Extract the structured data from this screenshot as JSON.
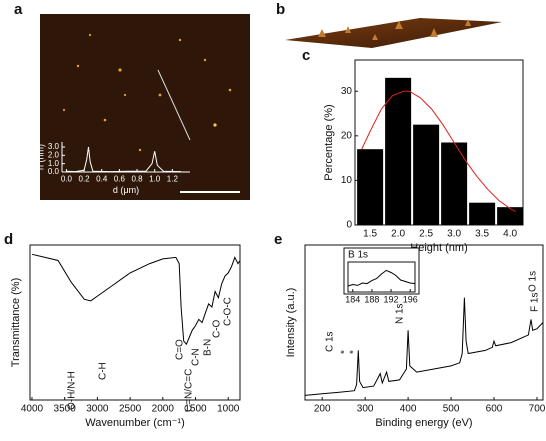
{
  "panel_labels": [
    "a",
    "b",
    "c",
    "d",
    "e"
  ],
  "chart_data": [
    {
      "type": "line",
      "xlabel": "d (μm)",
      "ylabel": "h (nm)",
      "xlim": [
        -0.05,
        1.4
      ],
      "ylim": [
        0,
        3.6
      ],
      "xticks": [
        {
          "value": 0,
          "label": "0.0"
        },
        0.2,
        0.4,
        0.6,
        0.8,
        {
          "value": 1,
          "label": "1.0"
        },
        1.2
      ],
      "yticks": [
        {
          "value": 0,
          "label": "0.0"
        },
        {
          "value": 1,
          "label": "1.0"
        },
        {
          "value": 2,
          "label": "2.0"
        },
        {
          "value": 3,
          "label": "3.0"
        }
      ],
      "series": [
        {
          "color": "#ffffff",
          "x": [
            0,
            0.1,
            0.2,
            0.23,
            0.25,
            0.27,
            0.3,
            0.5,
            0.7,
            0.9,
            0.97,
            1.0,
            1.03,
            1.1,
            1.3
          ],
          "values": [
            0.1,
            0.05,
            0.2,
            1.5,
            3.0,
            1.2,
            0.1,
            0.05,
            0.1,
            0.1,
            1.0,
            2.5,
            0.8,
            0.1,
            0.05
          ]
        }
      ]
    },
    {
      "type": "histogram",
      "xlabel": "Height (nm)",
      "ylabel": "Percentage (%)",
      "bins": [
        1.25,
        1.75,
        2.25,
        2.75,
        3.25,
        3.75,
        4.25
      ],
      "values": [
        17,
        33,
        22.5,
        18.5,
        5,
        4
      ],
      "color": "#000000",
      "xlim": [
        1.23,
        4.23
      ],
      "ylim": [
        0,
        37
      ],
      "xticks": [
        1.5,
        {
          "value": 2,
          "label": "2.0"
        },
        2.5,
        {
          "value": 3,
          "label": "3.0"
        },
        3.5,
        {
          "value": 4,
          "label": "4.0"
        }
      ],
      "yticks": [
        0,
        10,
        20,
        30
      ],
      "fit": {
        "color": "#e0201b",
        "x": [
          1.35,
          1.5,
          1.7,
          1.9,
          2.1,
          2.2,
          2.4,
          2.6,
          2.8,
          3.0,
          3.2,
          3.4,
          3.6,
          3.8,
          4.0,
          4.1
        ],
        "values": [
          17,
          21,
          26,
          29,
          30,
          30,
          28.5,
          26,
          22.5,
          18.5,
          14.5,
          11,
          8,
          5.5,
          3.7,
          3
        ]
      }
    },
    {
      "type": "line",
      "xlabel": "Wavenumber (cm⁻¹)",
      "ylabel": "Transmittance (%)",
      "xlim": [
        4030,
        820
      ],
      "ylim": [
        0,
        100
      ],
      "xticks": [
        4000,
        3500,
        3000,
        2500,
        2000,
        1500,
        1000
      ],
      "annotations": [
        "O-H/N-H",
        "C-H",
        "C=O",
        "C=N/C=C",
        "C-N",
        "B-N",
        "C-O",
        "C-O-C"
      ],
      "series": [
        {
          "color": "#000000",
          "x": [
            4000,
            3600,
            3400,
            3200,
            3100,
            3000,
            2800,
            2500,
            2200,
            2000,
            1800,
            1750,
            1720,
            1680,
            1640,
            1600,
            1550,
            1500,
            1450,
            1400,
            1350,
            1300,
            1250,
            1200,
            1150,
            1100,
            1050,
            1000,
            950,
            900,
            850,
            820
          ],
          "values": [
            94,
            90,
            76,
            65,
            64,
            67,
            73,
            82,
            88,
            91,
            92,
            88,
            60,
            38,
            36,
            40,
            45,
            48,
            52,
            50,
            56,
            62,
            60,
            70,
            66,
            75,
            80,
            82,
            86,
            92,
            88,
            90
          ]
        }
      ]
    },
    {
      "type": "line",
      "xlabel": "Binding energy (eV)",
      "ylabel": "Intensity (a.u.)",
      "xlim": [
        160,
        714
      ],
      "ylim": [
        0,
        100
      ],
      "xticks": [
        200,
        300,
        400,
        500,
        600,
        700
      ],
      "annotations": [
        "C 1s",
        "*",
        "*",
        "N 1s",
        "O 1s",
        "F 1s"
      ],
      "series": [
        {
          "color": "#000000",
          "x": [
            160,
            200,
            240,
            275,
            280,
            284,
            287,
            295,
            320,
            335,
            340,
            350,
            355,
            380,
            396,
            400,
            404,
            420,
            460,
            500,
            520,
            526,
            531,
            535,
            540,
            580,
            596,
            600,
            604,
            640,
            680,
            686,
            690,
            700,
            714
          ],
          "values": [
            3,
            4,
            5,
            6,
            10,
            32,
            12,
            8,
            9,
            17,
            11,
            18,
            12,
            13,
            20,
            45,
            22,
            18,
            20,
            22,
            24,
            30,
            66,
            38,
            30,
            32,
            34,
            38,
            35,
            37,
            42,
            52,
            45,
            46,
            50
          ]
        }
      ]
    },
    {
      "type": "line",
      "title": "B 1s",
      "xlim": [
        183,
        197
      ],
      "ylim": [
        0,
        100
      ],
      "xticks": [
        184,
        188,
        192,
        196
      ],
      "series": [
        {
          "color": "#000000",
          "x": [
            183,
            184,
            185,
            186,
            187,
            188,
            189,
            190,
            191,
            192,
            193,
            194,
            195,
            196,
            197
          ],
          "values": [
            20,
            25,
            22,
            30,
            28,
            38,
            45,
            60,
            72,
            65,
            55,
            40,
            35,
            30,
            28
          ]
        }
      ]
    }
  ]
}
